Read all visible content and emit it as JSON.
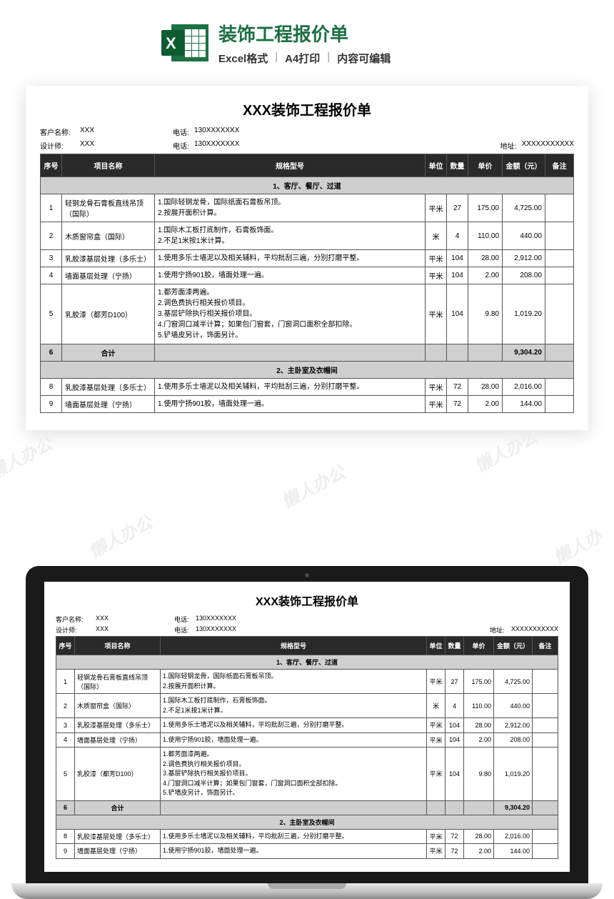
{
  "header": {
    "title": "装饰工程报价单",
    "meta": [
      "Excel格式",
      "A4打印",
      "内容可编辑"
    ]
  },
  "doc": {
    "title": "XXX装饰工程报价单",
    "info1": {
      "customer_lbl": "客户名称:",
      "customer": "XXX",
      "phone_lbl": "电话:",
      "phone": "130XXXXXXX"
    },
    "info2": {
      "designer_lbl": "设计师:",
      "designer": "XXX",
      "phone_lbl": "电话:",
      "phone": "130XXXXXXX",
      "addr_lbl": "地址:",
      "addr": "XXXXXXXXXXX"
    }
  },
  "columns": {
    "seq": "序号",
    "name": "项目名称",
    "spec": "规格型号",
    "unit": "单位",
    "qty": "数量",
    "price": "单价",
    "amount": "金额（元）",
    "note": "备注"
  },
  "sections": [
    {
      "header": "1、客厅、餐厅、过道",
      "rows": [
        {
          "seq": "1",
          "name": "轻钢龙骨石膏板直线吊顶（国际）",
          "spec": "1.国际轻钢龙骨，国际纸面石膏板吊顶。\n2.按展开面积计算。",
          "unit": "平米",
          "qty": "27",
          "price": "175.00",
          "amount": "4,725.00",
          "note": ""
        },
        {
          "seq": "2",
          "name": "木质窗帘盒（国际）",
          "spec": "1.国际木工板打底制作，石膏板饰面。\n2.不足1米按1米计算。",
          "unit": "米",
          "qty": "4",
          "price": "110.00",
          "amount": "440.00",
          "note": ""
        },
        {
          "seq": "3",
          "name": "乳胶漆基层处理（多乐士）",
          "spec": "1.使用多乐士墙泥以及相关辅料，平均批刮三遍，分别打磨平整。",
          "unit": "平米",
          "qty": "104",
          "price": "28.00",
          "amount": "2,912.00",
          "note": ""
        },
        {
          "seq": "4",
          "name": "墙面基层处理（宁扬）",
          "spec": "1.使用宁扬901胶，墙面处理一遍。",
          "unit": "平米",
          "qty": "104",
          "price": "2.00",
          "amount": "208.00",
          "note": ""
        },
        {
          "seq": "5",
          "name": "乳胶漆（都芳D100）",
          "spec": "1.都芳面漆两遍。\n2.调色费执行相关报价项目。\n3.基层铲除执行相关报价项目。\n4.门窗洞口减半计算；如果包门窗套，门窗洞口面积全部扣除。\n5.铲墙皮另计，饰面另计。",
          "unit": "平米",
          "qty": "104",
          "price": "9.80",
          "amount": "1,019.20",
          "note": ""
        }
      ],
      "subtotal": {
        "seq": "6",
        "name": "合计",
        "amount": "9,304.20"
      }
    },
    {
      "header": "2、主卧室及衣帽间",
      "rows": [
        {
          "seq": "8",
          "name": "乳胶漆基层处理（多乐士）",
          "spec": "1.使用多乐士墙泥以及相关辅料，平均批刮三遍，分别打磨平整。",
          "unit": "平米",
          "qty": "72",
          "price": "28.00",
          "amount": "2,016.00",
          "note": ""
        },
        {
          "seq": "9",
          "name": "墙面基层处理（宁扬）",
          "spec": "1.使用宁扬901胶，墙面处理一遍。",
          "unit": "平米",
          "qty": "72",
          "price": "2.00",
          "amount": "144.00",
          "note": ""
        }
      ]
    }
  ],
  "watermark_text": "懒人办公",
  "styling": {
    "brand_color": "#1d7044",
    "header_bg": "#2a2a2a",
    "header_fg": "#ffffff",
    "section_bg": "#cfcfcf",
    "border_color": "#555555",
    "doc_title_fontsize": 20,
    "th_fontsize": 10,
    "td_fontsize": 10
  }
}
